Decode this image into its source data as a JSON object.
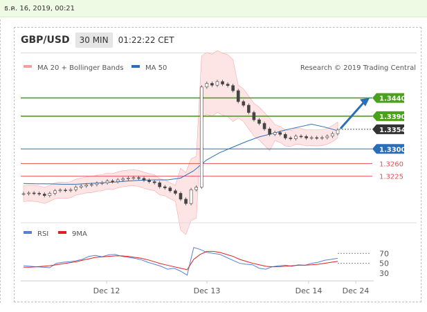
{
  "topbar": {
    "date": "ธ.ค. 16, 2019, 00:21"
  },
  "header": {
    "pair": "GBP/USD",
    "timeframe": "30 MIN",
    "time": "01:22:22 CET"
  },
  "legend": {
    "bb_label": "MA 20 + Bollinger Bands",
    "ma50_label": "MA 50",
    "credit": "Research © 2019 Trading Central",
    "rsi_label": "RSI",
    "ma9_label": "9MA"
  },
  "colors": {
    "green": "#4aa11b",
    "blue": "#2a6eba",
    "red": "#e05050",
    "bb": "#f8a0a0",
    "rsi": "#5a7fd6",
    "candle": "#444444",
    "arrow": "#2a6eba"
  },
  "chart_data": [
    {
      "type": "candlestick",
      "x_ticks": [
        "Dec 12",
        "Dec 13",
        "Dec 14",
        "Dec 24"
      ],
      "levels": [
        {
          "value": 1.344,
          "label": "1.3440",
          "color": "green",
          "style": "box"
        },
        {
          "value": 1.339,
          "label": "1.3390",
          "color": "green",
          "style": "box"
        },
        {
          "value": 1.3354,
          "label": "1.3354",
          "color": "dark",
          "style": "box"
        },
        {
          "value": 1.33,
          "label": "1.3300",
          "color": "blue",
          "style": "box"
        },
        {
          "value": 1.326,
          "label": "1.3260",
          "color": "red",
          "style": "text"
        },
        {
          "value": 1.3225,
          "label": "1.3225",
          "color": "red",
          "style": "text"
        }
      ],
      "price_series": [
        1.3177,
        1.3179,
        1.3178,
        1.3176,
        1.3172,
        1.3178,
        1.3185,
        1.3187,
        1.3186,
        1.3188,
        1.3195,
        1.3198,
        1.3201,
        1.3202,
        1.3206,
        1.3207,
        1.3212,
        1.321,
        1.3215,
        1.3218,
        1.322,
        1.3221,
        1.3219,
        1.3214,
        1.321,
        1.3207,
        1.3196,
        1.3193,
        1.3185,
        1.3178,
        1.3162,
        1.315,
        1.3188,
        1.3195,
        1.347,
        1.348,
        1.3475,
        1.3485,
        1.3478,
        1.3474,
        1.346,
        1.343,
        1.342,
        1.34,
        1.338,
        1.337,
        1.3355,
        1.334,
        1.3345,
        1.334,
        1.333,
        1.3328,
        1.3335,
        1.3334,
        1.333,
        1.3331,
        1.333,
        1.3331,
        1.3335,
        1.3342,
        1.3352
      ],
      "ma50_series": [
        1.3205,
        1.3204,
        1.3204,
        1.3203,
        1.3203,
        1.3205,
        1.3207,
        1.3209,
        1.3212,
        1.3214,
        1.3215,
        1.3215,
        1.322,
        1.324,
        1.327,
        1.329,
        1.3305,
        1.332,
        1.3333,
        1.3342,
        1.3352,
        1.336,
        1.3368,
        1.336,
        1.335
      ],
      "forecast_target": 1.344
    },
    {
      "type": "line",
      "title": "RSI",
      "y_ticks": [
        70,
        50,
        30
      ],
      "series": [
        {
          "name": "RSI",
          "values": [
            45,
            44,
            43,
            42,
            41,
            50,
            52,
            53,
            55,
            58,
            64,
            66,
            63,
            67,
            68,
            64,
            62,
            60,
            57,
            52,
            48,
            44,
            38,
            40,
            34,
            26,
            82,
            78,
            72,
            70,
            68,
            62,
            56,
            50,
            48,
            47,
            40,
            38,
            43,
            45,
            46,
            44,
            47,
            46,
            50,
            52,
            56,
            58,
            60
          ]
        },
        {
          "name": "9MA",
          "values": [
            42,
            42,
            43,
            44,
            45,
            47,
            49,
            51,
            53,
            56,
            59,
            62,
            63,
            64,
            65,
            65,
            64,
            62,
            60,
            57,
            53,
            49,
            46,
            43,
            40,
            37,
            58,
            68,
            74,
            74,
            72,
            68,
            64,
            58,
            54,
            50,
            47,
            44,
            43,
            43,
            44,
            45,
            46,
            46,
            47,
            48,
            50,
            52,
            54
          ]
        }
      ]
    }
  ]
}
